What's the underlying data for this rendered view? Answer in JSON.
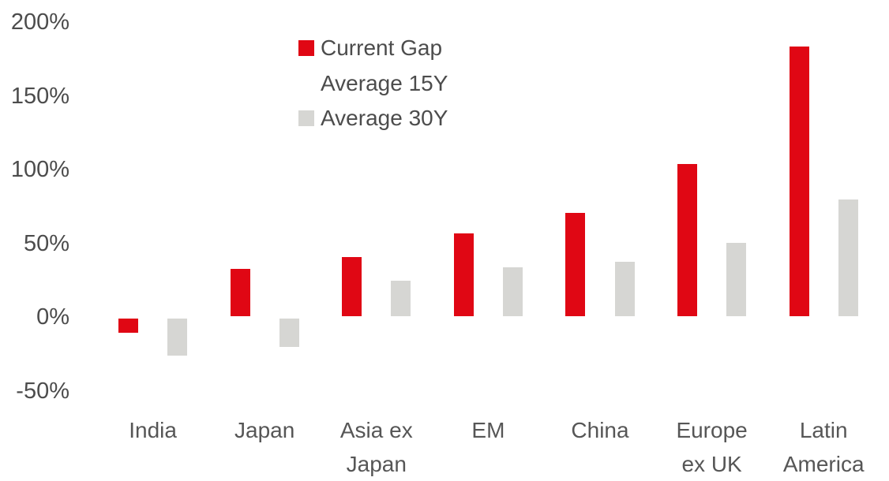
{
  "chart_data": {
    "type": "bar",
    "title": "",
    "xlabel": "",
    "ylabel": "",
    "unit": "%",
    "grid": false,
    "axis_line": "none",
    "legend_position": "top-center",
    "ylim": [
      -50,
      200
    ],
    "categories": [
      "India",
      "Japan",
      "Asia ex\nJapan",
      "EM",
      "China",
      "Europe\nex UK",
      "Latin\nAmerica"
    ],
    "series": [
      {
        "name": "Current Gap",
        "color": "#e00714",
        "values": [
          -11,
          32,
          40,
          56,
          70,
          103,
          183
        ]
      },
      {
        "name": "Average 15Y",
        "color": "#ffffff",
        "values": [
          null,
          null,
          null,
          null,
          null,
          null,
          null
        ]
      },
      {
        "name": "Average 30Y",
        "color": "#d6d6d3",
        "values": [
          -27,
          -21,
          24,
          33,
          37,
          50,
          79
        ]
      }
    ],
    "legend": [
      {
        "label": "Current Gap",
        "color": "#e00714"
      },
      {
        "label": "Average 15Y",
        "color": "#ffffff"
      },
      {
        "label": "Average 30Y",
        "color": "#d6d6d3"
      }
    ],
    "y_ticks": [
      {
        "label": "200%",
        "value": 200
      },
      {
        "label": "150%",
        "value": 150
      },
      {
        "label": "100%",
        "value": 100
      },
      {
        "label": "50%",
        "value": 50
      },
      {
        "label": "0%",
        "value": 0
      },
      {
        "label": "-50%",
        "value": -50
      }
    ]
  },
  "colors": {
    "bar_red": "#e00714",
    "bar_gray": "#d6d6d3",
    "bar_white": "#ffffff",
    "axis_text": "#4c4c4c",
    "category_text": "#565656",
    "background": "#ffffff"
  }
}
